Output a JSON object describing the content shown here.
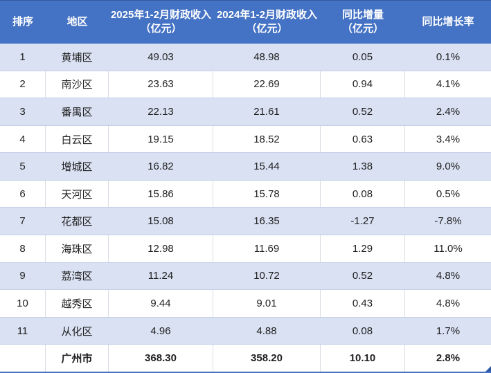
{
  "colors": {
    "header_bg": "#4472C4",
    "header_text": "#FFFFFF",
    "stripe_bg": "#D9E1F2",
    "row_bg": "#FFFFFF",
    "grid_h": "#C3CEE8",
    "grid_v": "#D8DCE4",
    "text": "#1F1F1F",
    "table_edge": "#4472C4",
    "handle": "#2E5BA8"
  },
  "chart_data": {
    "type": "table",
    "title": "",
    "columns": [
      {
        "label": "排序",
        "sub": ""
      },
      {
        "label": "地区",
        "sub": ""
      },
      {
        "label": "2025年1-2月财政收入",
        "sub": "（亿元）"
      },
      {
        "label": "2024年1-2月财政收入",
        "sub": "（亿元）"
      },
      {
        "label": "同比增量",
        "sub": "（亿元）"
      },
      {
        "label": "同比增长率",
        "sub": ""
      }
    ],
    "rows": [
      {
        "rank": "1",
        "region": "黄埔区",
        "rev2025": "49.03",
        "rev2024": "48.98",
        "delta": "0.05",
        "growth": "0.1%"
      },
      {
        "rank": "2",
        "region": "南沙区",
        "rev2025": "23.63",
        "rev2024": "22.69",
        "delta": "0.94",
        "growth": "4.1%"
      },
      {
        "rank": "3",
        "region": "番禺区",
        "rev2025": "22.13",
        "rev2024": "21.61",
        "delta": "0.52",
        "growth": "2.4%"
      },
      {
        "rank": "4",
        "region": "白云区",
        "rev2025": "19.15",
        "rev2024": "18.52",
        "delta": "0.63",
        "growth": "3.4%"
      },
      {
        "rank": "5",
        "region": "增城区",
        "rev2025": "16.82",
        "rev2024": "15.44",
        "delta": "1.38",
        "growth": "9.0%"
      },
      {
        "rank": "6",
        "region": "天河区",
        "rev2025": "15.86",
        "rev2024": "15.78",
        "delta": "0.08",
        "growth": "0.5%"
      },
      {
        "rank": "7",
        "region": "花都区",
        "rev2025": "15.08",
        "rev2024": "16.35",
        "delta": "-1.27",
        "growth": "-7.8%"
      },
      {
        "rank": "8",
        "region": "海珠区",
        "rev2025": "12.98",
        "rev2024": "11.69",
        "delta": "1.29",
        "growth": "11.0%"
      },
      {
        "rank": "9",
        "region": "荔湾区",
        "rev2025": "11.24",
        "rev2024": "10.72",
        "delta": "0.52",
        "growth": "4.8%"
      },
      {
        "rank": "10",
        "region": "越秀区",
        "rev2025": "9.44",
        "rev2024": "9.01",
        "delta": "0.43",
        "growth": "4.8%"
      },
      {
        "rank": "11",
        "region": "从化区",
        "rev2025": "4.96",
        "rev2024": "4.88",
        "delta": "0.08",
        "growth": "1.7%"
      }
    ],
    "total": {
      "rank": "",
      "region": "广州市",
      "rev2025": "368.30",
      "rev2024": "358.20",
      "delta": "10.10",
      "growth": "2.8%"
    }
  }
}
